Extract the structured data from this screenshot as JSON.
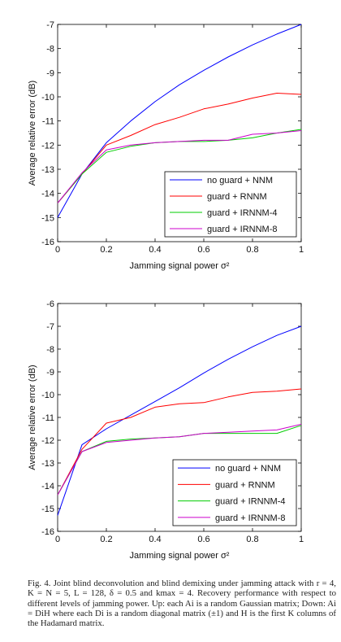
{
  "chart_data": [
    {
      "type": "line",
      "xlabel": "Jamming signal power σ²",
      "ylabel": "Average relative error (dB)",
      "xlim": [
        0,
        1
      ],
      "ylim": [
        -16,
        -7
      ],
      "xticks": [
        0,
        0.2,
        0.4,
        0.6,
        0.8,
        1
      ],
      "xtick_labels": [
        "0",
        "0.2",
        "0.4",
        "0.6",
        "0.8",
        "1"
      ],
      "yticks": [
        -16,
        -15,
        -14,
        -13,
        -12,
        -11,
        -10,
        -9,
        -8,
        -7
      ],
      "ytick_labels": [
        "-16",
        "-15",
        "-14",
        "-13",
        "-12",
        "-11",
        "-10",
        "-9",
        "-8",
        "-7"
      ],
      "grid": false,
      "legend_position": "lower-right",
      "series": [
        {
          "name": "no guard + NNM",
          "color": "#0000ff",
          "x": [
            0,
            0.1,
            0.2,
            0.3,
            0.4,
            0.5,
            0.6,
            0.7,
            0.8,
            0.9,
            1
          ],
          "y": [
            -15.0,
            -13.2,
            -11.9,
            -11.0,
            -10.2,
            -9.5,
            -8.9,
            -8.35,
            -7.85,
            -7.4,
            -7.0
          ]
        },
        {
          "name": "guard + RNNM",
          "color": "#ff0000",
          "x": [
            0,
            0.1,
            0.2,
            0.3,
            0.4,
            0.5,
            0.6,
            0.7,
            0.8,
            0.9,
            1
          ],
          "y": [
            -14.4,
            -13.2,
            -12.0,
            -11.6,
            -11.15,
            -10.85,
            -10.5,
            -10.3,
            -10.05,
            -9.85,
            -9.9
          ]
        },
        {
          "name": "guard + IRNNM-4",
          "color": "#00cc00",
          "x": [
            0,
            0.1,
            0.2,
            0.3,
            0.4,
            0.5,
            0.6,
            0.7,
            0.8,
            0.9,
            1
          ],
          "y": [
            -14.4,
            -13.2,
            -12.3,
            -12.05,
            -11.9,
            -11.85,
            -11.85,
            -11.8,
            -11.7,
            -11.5,
            -11.35
          ]
        },
        {
          "name": "guard + IRNNM-8",
          "color": "#cc00cc",
          "x": [
            0,
            0.1,
            0.2,
            0.3,
            0.4,
            0.5,
            0.6,
            0.7,
            0.8,
            0.9,
            1
          ],
          "y": [
            -14.4,
            -13.15,
            -12.2,
            -12.0,
            -11.9,
            -11.85,
            -11.8,
            -11.8,
            -11.55,
            -11.5,
            -11.4
          ]
        }
      ]
    },
    {
      "type": "line",
      "xlabel": "Jamming signal power σ²",
      "ylabel": "Average relative error (dB)",
      "xlim": [
        0,
        1
      ],
      "ylim": [
        -16,
        -6
      ],
      "xticks": [
        0,
        0.2,
        0.4,
        0.6,
        0.8,
        1
      ],
      "xtick_labels": [
        "0",
        "0.2",
        "0.4",
        "0.6",
        "0.8",
        "1"
      ],
      "yticks": [
        -16,
        -15,
        -14,
        -13,
        -12,
        -11,
        -10,
        -9,
        -8,
        -7,
        -6
      ],
      "ytick_labels": [
        "-16",
        "-15",
        "-14",
        "-13",
        "-12",
        "-11",
        "-10",
        "-9",
        "-8",
        "-7",
        "-6"
      ],
      "grid": false,
      "legend_position": "lower-right",
      "series": [
        {
          "name": "no guard + NNM",
          "color": "#0000ff",
          "x": [
            0,
            0.1,
            0.2,
            0.3,
            0.4,
            0.5,
            0.6,
            0.7,
            0.8,
            0.9,
            1
          ],
          "y": [
            -15.3,
            -12.2,
            -11.5,
            -10.9,
            -10.3,
            -9.7,
            -9.05,
            -8.45,
            -7.9,
            -7.4,
            -7.0
          ]
        },
        {
          "name": "guard + RNNM",
          "color": "#ff0000",
          "x": [
            0,
            0.1,
            0.2,
            0.3,
            0.4,
            0.5,
            0.6,
            0.7,
            0.8,
            0.9,
            1
          ],
          "y": [
            -14.4,
            -12.4,
            -11.25,
            -11.0,
            -10.55,
            -10.4,
            -10.35,
            -10.1,
            -9.9,
            -9.85,
            -9.75
          ]
        },
        {
          "name": "guard + IRNNM-4",
          "color": "#00cc00",
          "x": [
            0,
            0.1,
            0.2,
            0.3,
            0.4,
            0.5,
            0.6,
            0.7,
            0.8,
            0.9,
            1
          ],
          "y": [
            -14.4,
            -12.5,
            -12.05,
            -11.95,
            -11.9,
            -11.85,
            -11.7,
            -11.7,
            -11.7,
            -11.7,
            -11.35
          ]
        },
        {
          "name": "guard + IRNNM-8",
          "color": "#cc00cc",
          "x": [
            0,
            0.1,
            0.2,
            0.3,
            0.4,
            0.5,
            0.6,
            0.7,
            0.8,
            0.9,
            1
          ],
          "y": [
            -14.4,
            -12.5,
            -12.1,
            -12.0,
            -11.9,
            -11.85,
            -11.7,
            -11.65,
            -11.6,
            -11.55,
            -11.3
          ]
        }
      ]
    }
  ],
  "caption": "Fig. 4.  Joint blind deconvolution and blind demixing under jamming attack with r = 4, K = N = 5, L = 128, δ = 0.5 and kmax = 4. Recovery performance with respect to different levels of jamming power. Up: each Ai is a random Gaussian matrix; Down: Ai = DiH where each Di is a random diagonal matrix (±1) and H is the first K columns of the Hadamard matrix."
}
